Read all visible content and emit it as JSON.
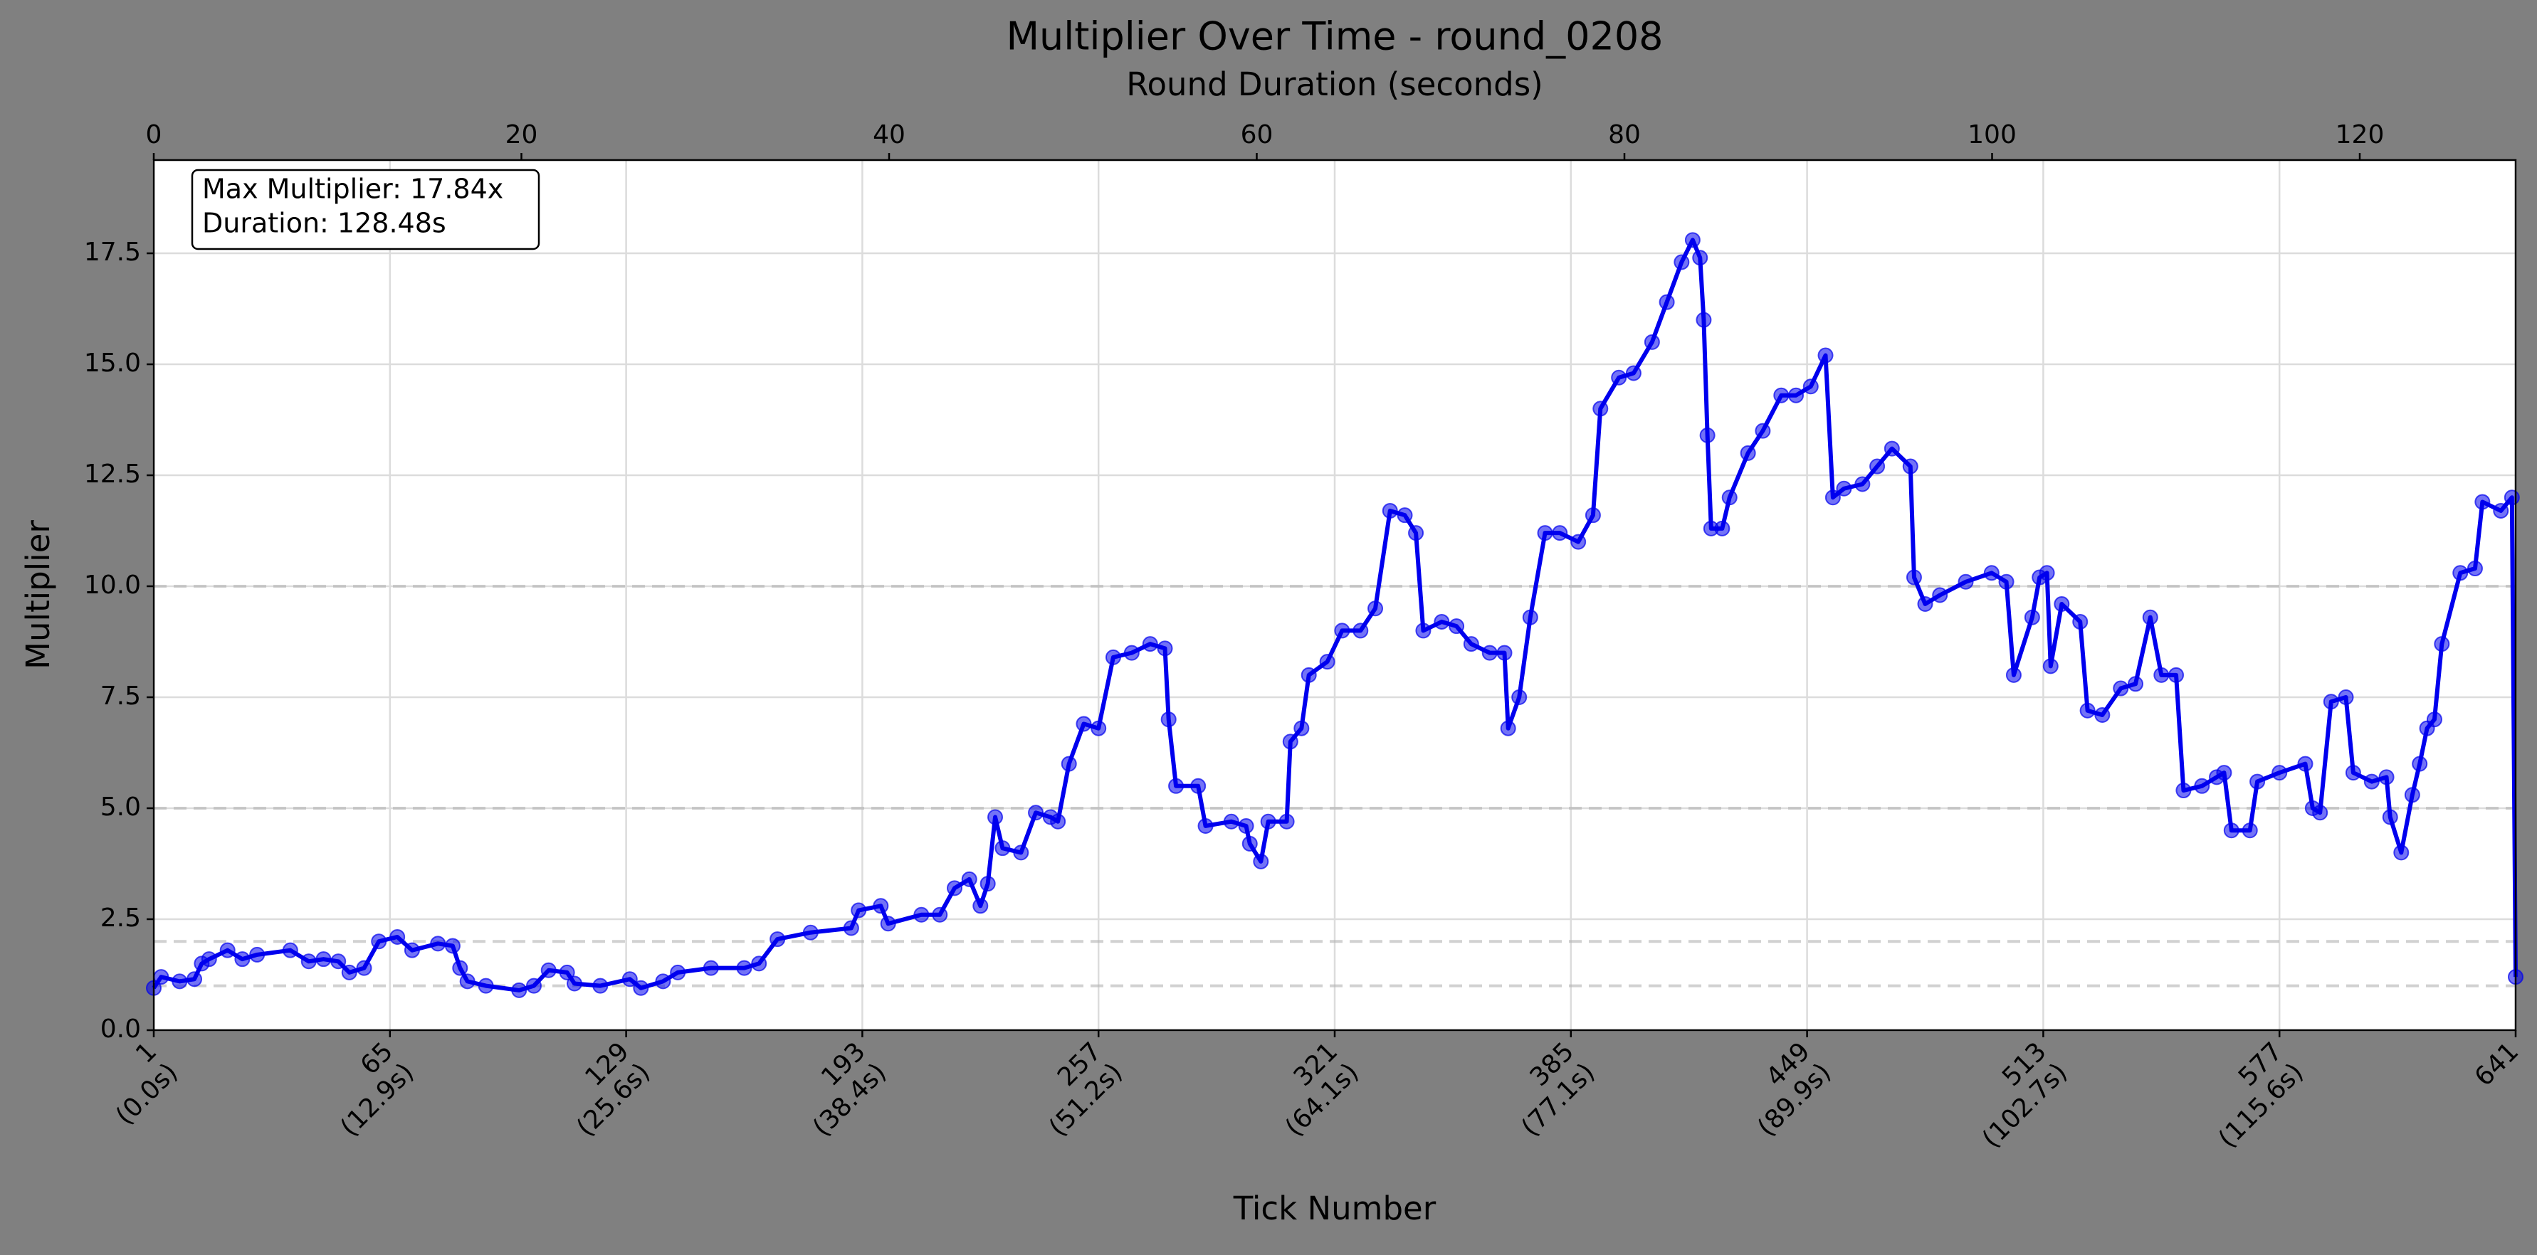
{
  "chart_data": {
    "type": "line",
    "title": "Multiplier Over Time - round_0208",
    "xlabel": "Tick Number",
    "ylabel": "Multiplier",
    "x2label": "Round Duration (seconds)",
    "annotation": [
      "Max Multiplier: 17.84x",
      "Duration: 128.48s"
    ],
    "xlim": [
      1,
      641
    ],
    "ylim": [
      0,
      19.6
    ],
    "x2lim": [
      0,
      128.48
    ],
    "xticks": [
      {
        "value": 1,
        "label": "1\n(0.0s)"
      },
      {
        "value": 65,
        "label": "65\n(12.9s)"
      },
      {
        "value": 129,
        "label": "129\n(25.6s)"
      },
      {
        "value": 193,
        "label": "193\n(38.4s)"
      },
      {
        "value": 257,
        "label": "257\n(51.2s)"
      },
      {
        "value": 321,
        "label": "321\n(64.1s)"
      },
      {
        "value": 385,
        "label": "385\n(77.1s)"
      },
      {
        "value": 449,
        "label": "449\n(89.9s)"
      },
      {
        "value": 513,
        "label": "513\n(102.7s)"
      },
      {
        "value": 577,
        "label": "577\n(115.6s)"
      },
      641
    ],
    "x2ticks": [
      0,
      20,
      40,
      60,
      80,
      100,
      120
    ],
    "yticks": [
      {
        "value": 0,
        "label": "0.0"
      },
      2.5,
      {
        "value": 5,
        "label": "5.0"
      },
      7.5,
      {
        "value": 10,
        "label": "10.0"
      },
      12.5,
      {
        "value": 15,
        "label": "15.0"
      },
      17.5
    ],
    "reference_lines": [
      1,
      2,
      5,
      10
    ],
    "grid": true,
    "x": [
      1,
      3,
      8,
      12,
      14,
      16,
      21,
      25,
      29,
      38,
      43,
      47,
      51,
      54,
      58,
      62,
      67,
      71,
      78,
      82,
      84,
      86,
      91,
      100,
      104,
      108,
      113,
      115,
      122,
      130,
      133,
      139,
      143,
      152,
      161,
      165,
      170,
      179,
      190,
      192,
      198,
      200,
      209,
      214,
      218,
      222,
      225,
      227,
      229,
      231,
      236,
      240,
      244,
      246,
      249,
      253,
      257,
      261,
      266,
      271,
      275,
      276,
      278,
      284,
      286,
      293,
      297,
      298,
      301,
      303,
      308,
      309,
      312,
      314,
      319,
      323,
      328,
      332,
      336,
      340,
      343,
      345,
      350,
      354,
      358,
      363,
      367,
      368,
      371,
      374,
      378,
      382,
      387,
      391,
      393,
      398,
      402,
      407,
      411,
      415,
      418,
      420,
      421,
      422,
      423,
      426,
      428,
      433,
      437,
      442,
      446,
      450,
      454,
      456,
      459,
      464,
      468,
      472,
      477,
      478,
      481,
      485,
      492,
      499,
      503,
      505,
      510,
      512,
      514,
      515,
      518,
      523,
      525,
      529,
      534,
      538,
      542,
      545,
      549,
      551,
      556,
      560,
      562,
      564,
      569,
      571,
      577,
      584,
      586,
      588,
      591,
      595,
      597,
      602,
      606,
      607,
      610,
      613,
      615,
      617,
      619,
      621,
      626,
      630,
      632,
      637,
      640,
      641
    ],
    "series": [
      {
        "name": "Multiplier",
        "color": "#0000ee",
        "values": [
          0.95,
          1.2,
          1.1,
          1.15,
          1.5,
          1.6,
          1.8,
          1.6,
          1.7,
          1.8,
          1.55,
          1.6,
          1.55,
          1.3,
          1.4,
          2.0,
          2.1,
          1.8,
          1.95,
          1.9,
          1.4,
          1.1,
          1.0,
          0.9,
          1.0,
          1.35,
          1.3,
          1.05,
          1.0,
          1.15,
          0.95,
          1.1,
          1.3,
          1.4,
          1.4,
          1.5,
          2.05,
          2.2,
          2.3,
          2.7,
          2.8,
          2.4,
          2.6,
          2.6,
          3.2,
          3.4,
          2.8,
          3.3,
          4.8,
          4.1,
          4.0,
          4.9,
          4.8,
          4.7,
          6.0,
          6.9,
          6.8,
          8.4,
          8.5,
          8.7,
          8.6,
          7.0,
          5.5,
          5.5,
          4.6,
          4.7,
          4.6,
          4.2,
          3.8,
          4.7,
          4.7,
          6.5,
          6.8,
          8.0,
          8.3,
          9.0,
          9.0,
          9.5,
          11.7,
          11.6,
          11.2,
          9.0,
          9.2,
          9.1,
          8.7,
          8.5,
          8.5,
          6.8,
          7.5,
          9.3,
          11.2,
          11.2,
          11.0,
          11.6,
          14.0,
          14.7,
          14.8,
          15.5,
          16.4,
          17.3,
          17.8,
          17.4,
          16.0,
          13.4,
          11.3,
          11.3,
          12.0,
          13.0,
          13.5,
          14.3,
          14.3,
          14.5,
          15.2,
          12.0,
          12.2,
          12.3,
          12.7,
          13.1,
          12.7,
          10.2,
          9.6,
          9.8,
          10.1,
          10.3,
          10.1,
          8.0,
          9.3,
          10.2,
          10.3,
          8.2,
          9.6,
          9.2,
          7.2,
          7.1,
          7.7,
          7.8,
          9.3,
          8.0,
          8.0,
          5.4,
          5.5,
          5.7,
          5.8,
          4.5,
          4.5,
          5.6,
          5.8,
          6.0,
          5.0,
          4.9,
          7.4,
          7.5,
          5.8,
          5.6,
          5.7,
          4.8,
          4.0,
          5.3,
          6.0,
          6.8,
          7.0,
          8.7,
          10.3,
          10.4,
          11.9,
          11.7,
          12.0,
          1.2
        ]
      }
    ]
  }
}
